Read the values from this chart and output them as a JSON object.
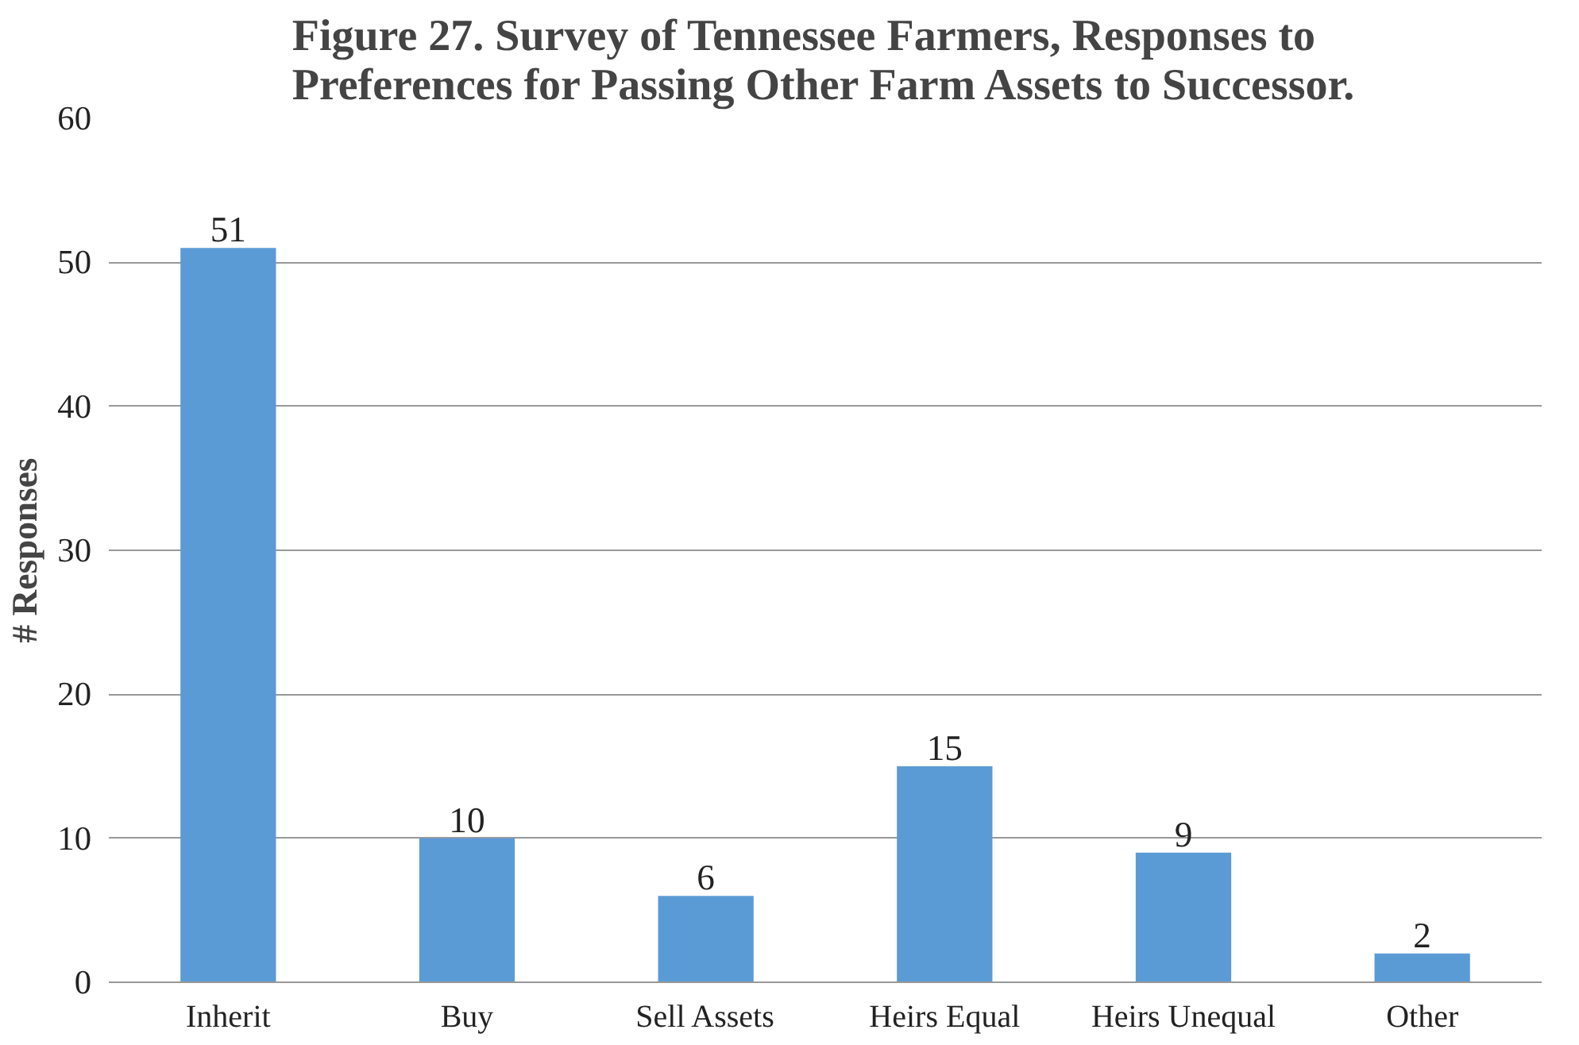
{
  "chart_data": {
    "type": "bar",
    "title": "Figure 27.  Survey of Tennessee Farmers, Responses to Preferences for Passing Other Farm Assets to Successor.",
    "ylabel": "# Responses",
    "categories": [
      "Inherit",
      "Buy",
      "Sell Assets",
      "Heirs Equal",
      "Heirs Unequal",
      "Other"
    ],
    "values": [
      51,
      10,
      6,
      15,
      9,
      2
    ],
    "color": "#5b9bd5",
    "ylim": [
      0,
      60
    ],
    "yticks": [
      0,
      10,
      20,
      30,
      40,
      50,
      60
    ],
    "grid": "y",
    "data_labels": true
  }
}
